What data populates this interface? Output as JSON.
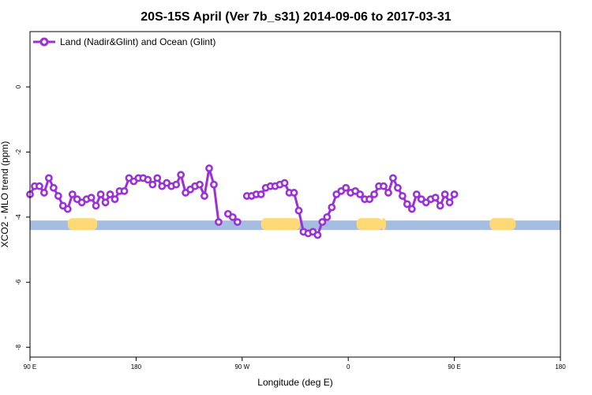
{
  "chart_data": {
    "type": "line",
    "title": "20S-15S April (Ver 7b_s31)   2014-09-06 to 2017-03-31",
    "xlabel": "Longitude (deg E)",
    "ylabel": "XCO2 - MLO trend (ppm)",
    "x_ticks": [
      {
        "value": 90,
        "label": "90 E"
      },
      {
        "value": 180,
        "label": "180"
      },
      {
        "value": 270,
        "label": "90 W"
      },
      {
        "value": 360,
        "label": "0"
      },
      {
        "value": 450,
        "label": "90 E"
      },
      {
        "value": 540,
        "label": "180"
      }
    ],
    "y_ticks": [
      {
        "value": 0,
        "label": "0"
      },
      {
        "value": -2,
        "label": "-2"
      },
      {
        "value": -4,
        "label": "-4"
      },
      {
        "value": -6,
        "label": "-6"
      },
      {
        "value": -8,
        "label": "-8"
      }
    ],
    "xlim": [
      90,
      540
    ],
    "ylim": [
      -8.3,
      1.7
    ],
    "legend": {
      "position": "top-left"
    },
    "series": [
      {
        "name": "Land (Nadir&Glint) and Ocean (Glint)",
        "color": "#9b30d9",
        "segments": [
          [
            [
              90,
              -3.3
            ],
            [
              94,
              -3.05
            ],
            [
              98,
              -3.05
            ],
            [
              102,
              -3.25
            ],
            [
              106,
              -2.8
            ],
            [
              110,
              -3.1
            ],
            [
              114,
              -3.35
            ],
            [
              118,
              -3.65
            ],
            [
              122,
              -3.75
            ],
            [
              126,
              -3.3
            ],
            [
              130,
              -3.45
            ],
            [
              134,
              -3.55
            ],
            [
              138,
              -3.45
            ],
            [
              142,
              -3.4
            ],
            [
              146,
              -3.65
            ],
            [
              150,
              -3.3
            ],
            [
              154,
              -3.55
            ],
            [
              158,
              -3.3
            ],
            [
              162,
              -3.45
            ],
            [
              166,
              -3.2
            ],
            [
              170,
              -3.2
            ],
            [
              174,
              -2.8
            ],
            [
              178,
              -2.9
            ],
            [
              182,
              -2.8
            ],
            [
              186,
              -2.8
            ],
            [
              190,
              -2.85
            ],
            [
              194,
              -3.0
            ],
            [
              198,
              -2.8
            ],
            [
              202,
              -3.05
            ],
            [
              206,
              -2.95
            ],
            [
              210,
              -3.05
            ],
            [
              214,
              -3.0
            ],
            [
              218,
              -2.7
            ],
            [
              222,
              -3.25
            ],
            [
              226,
              -3.15
            ],
            [
              230,
              -3.05
            ],
            [
              234,
              -3.0
            ],
            [
              238,
              -3.35
            ],
            [
              242,
              -2.5
            ],
            [
              246,
              -3.0
            ],
            [
              250,
              -4.15
            ]
          ],
          [
            [
              258,
              -3.9
            ],
            [
              262,
              -4.0
            ],
            [
              266,
              -4.15
            ]
          ],
          [
            [
              274,
              -3.35
            ],
            [
              278,
              -3.35
            ],
            [
              282,
              -3.3
            ],
            [
              286,
              -3.3
            ],
            [
              290,
              -3.1
            ],
            [
              294,
              -3.05
            ],
            [
              298,
              -3.05
            ],
            [
              302,
              -3.0
            ],
            [
              306,
              -2.95
            ],
            [
              310,
              -3.25
            ],
            [
              314,
              -3.25
            ],
            [
              318,
              -3.8
            ],
            [
              322,
              -4.45
            ],
            [
              326,
              -4.5
            ],
            [
              330,
              -4.45
            ],
            [
              334,
              -4.55
            ],
            [
              338,
              -4.15
            ],
            [
              342,
              -4.0
            ],
            [
              346,
              -3.7
            ],
            [
              350,
              -3.3
            ],
            [
              354,
              -3.2
            ],
            [
              358,
              -3.1
            ],
            [
              362,
              -3.25
            ],
            [
              366,
              -3.2
            ],
            [
              370,
              -3.3
            ],
            [
              374,
              -3.45
            ],
            [
              378,
              -3.45
            ],
            [
              382,
              -3.3
            ],
            [
              386,
              -3.05
            ],
            [
              390,
              -3.05
            ],
            [
              394,
              -3.25
            ],
            [
              398,
              -2.8
            ],
            [
              402,
              -3.1
            ],
            [
              406,
              -3.35
            ],
            [
              410,
              -3.6
            ],
            [
              414,
              -3.75
            ],
            [
              418,
              -3.3
            ],
            [
              422,
              -3.45
            ],
            [
              426,
              -3.55
            ],
            [
              430,
              -3.45
            ],
            [
              434,
              -3.4
            ],
            [
              438,
              -3.65
            ],
            [
              442,
              -3.3
            ],
            [
              446,
              -3.55
            ],
            [
              450,
              -3.3
            ]
          ]
        ]
      }
    ],
    "surface_band": {
      "y": -4.25,
      "ocean_color": "#a5bde0",
      "land_color": "#ffd977",
      "land_ranges": [
        [
          122,
          147
        ],
        [
          286,
          319
        ],
        [
          367,
          389
        ],
        [
          388,
          392
        ],
        [
          480,
          502
        ]
      ]
    }
  }
}
